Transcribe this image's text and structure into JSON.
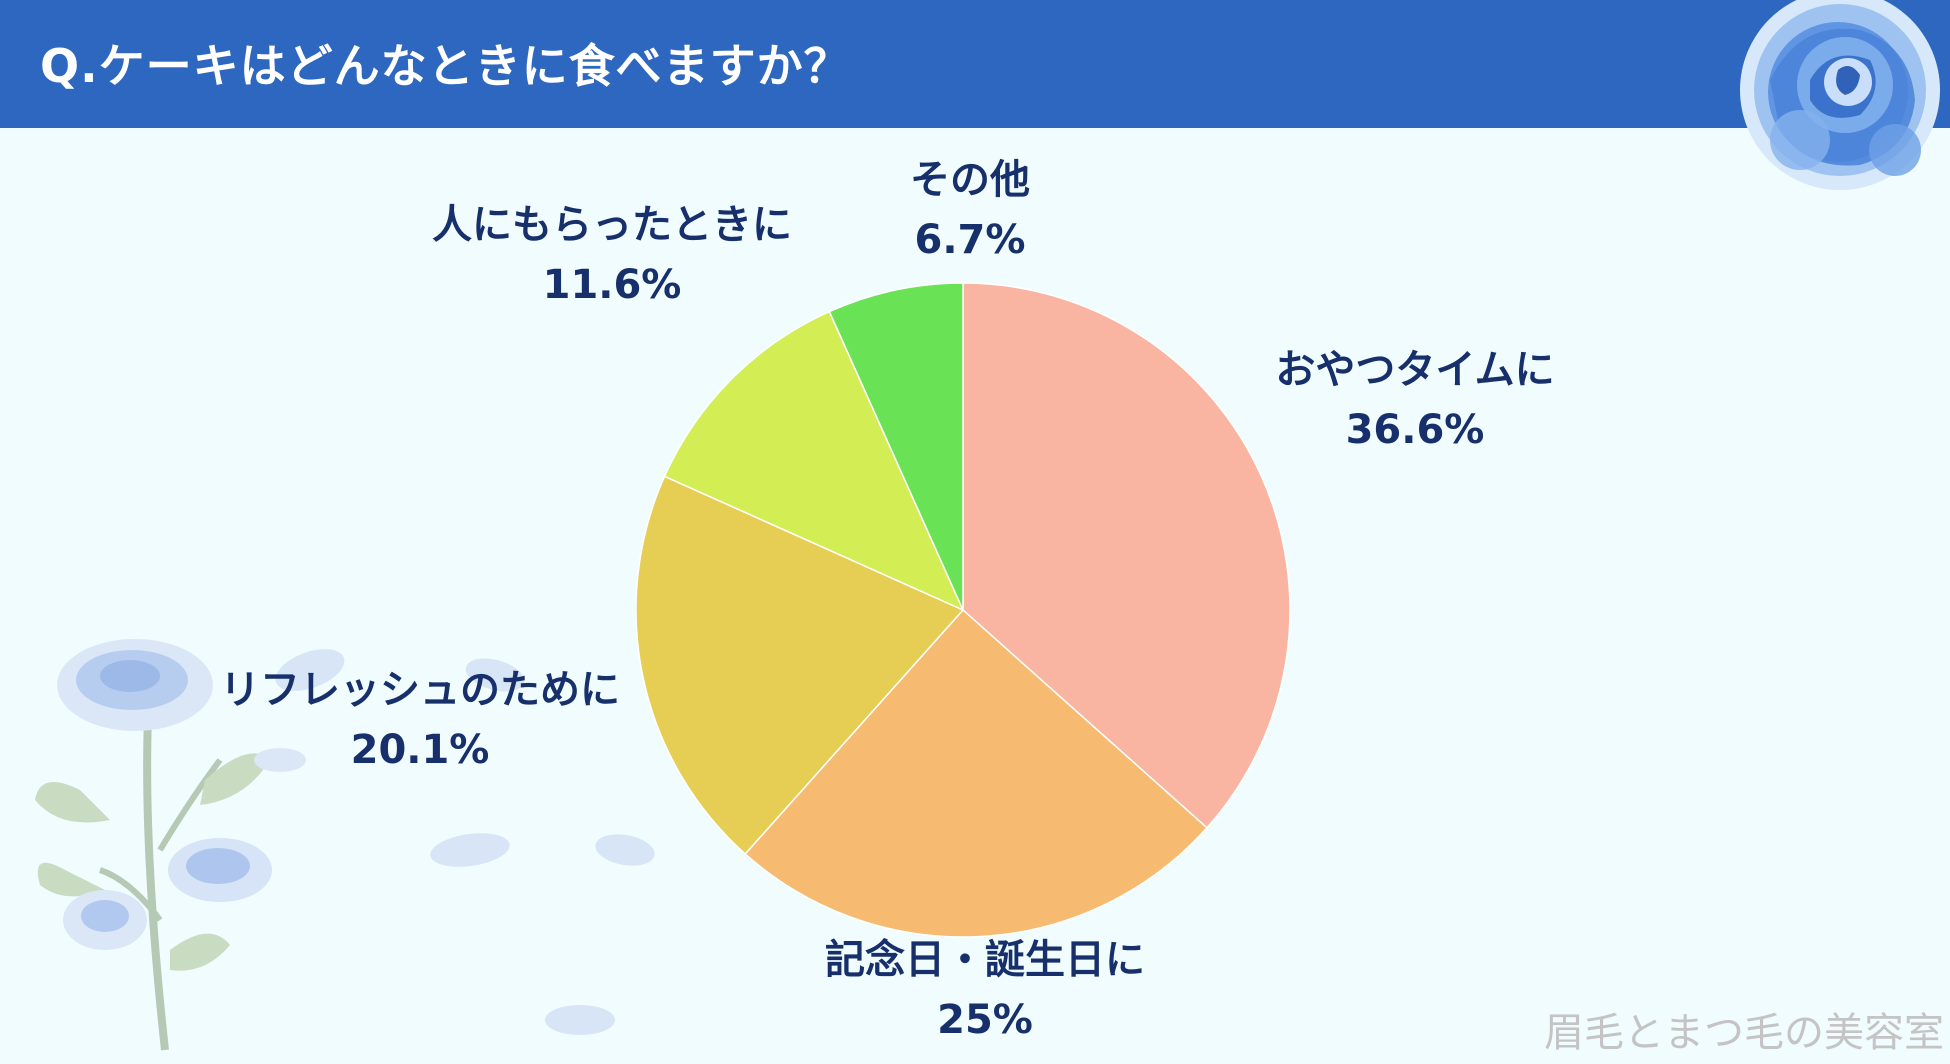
{
  "header": {
    "title": "Q.ケーキはどんなときに食べますか？"
  },
  "watermark": "眉毛とまつ毛の美容室",
  "colors": {
    "header": "#2e67c0",
    "background": "#f0fcfd",
    "label_text": "#17306c"
  },
  "decorations": {
    "top_right": "blue-rose-icon",
    "bottom_left": "blue-rose-stem-icon"
  },
  "chart_data": {
    "type": "pie",
    "title": "Q.ケーキはどんなときに食べますか？",
    "start": "12 o'clock",
    "direction": "clockwise",
    "slices": [
      {
        "label": "おやつタイムに",
        "value": 36.6,
        "value_label": "36.6%",
        "color": "#f9b5a1"
      },
      {
        "label": "記念日・誕生日に",
        "value": 25,
        "value_label": "25%",
        "color": "#f6ba70"
      },
      {
        "label": "リフレッシュのために",
        "value": 20.1,
        "value_label": "20.1%",
        "color": "#e6cd54"
      },
      {
        "label": "人にもらったときに",
        "value": 11.6,
        "value_label": "11.6%",
        "color": "#d3ed55"
      },
      {
        "label": "その他",
        "value": 6.7,
        "value_label": "6.7%",
        "color": "#6ae255"
      }
    ]
  }
}
